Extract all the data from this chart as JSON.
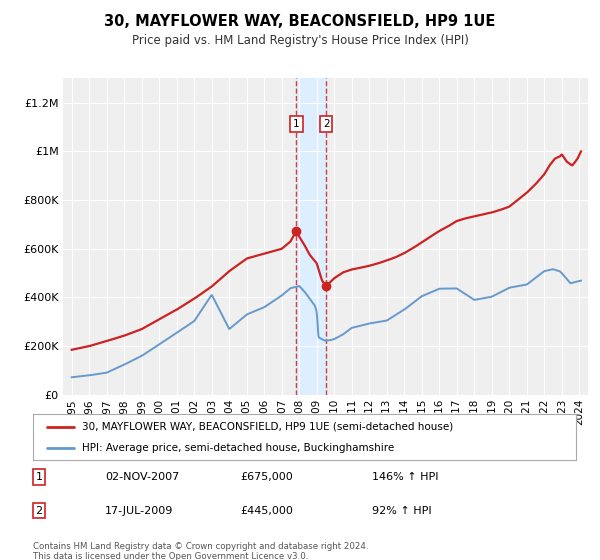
{
  "title": "30, MAYFLOWER WAY, BEACONSFIELD, HP9 1UE",
  "subtitle": "Price paid vs. HM Land Registry's House Price Index (HPI)",
  "legend_line1": "30, MAYFLOWER WAY, BEACONSFIELD, HP9 1UE (semi-detached house)",
  "legend_line2": "HPI: Average price, semi-detached house, Buckinghamshire",
  "footer": "Contains HM Land Registry data © Crown copyright and database right 2024.\nThis data is licensed under the Open Government Licence v3.0.",
  "transaction1_date": "02-NOV-2007",
  "transaction1_price": "£675,000",
  "transaction1_hpi": "146% ↑ HPI",
  "transaction1_x": 2007.84,
  "transaction1_y": 675000,
  "transaction2_date": "17-JUL-2009",
  "transaction2_price": "£445,000",
  "transaction2_hpi": "92% ↑ HPI",
  "transaction2_x": 2009.54,
  "transaction2_y": 445000,
  "hpi_color": "#6699cc",
  "price_color": "#cc2222",
  "vspan_color": "#ddeeff",
  "ylim": [
    0,
    1300000
  ],
  "xlim_start": 1994.5,
  "xlim_end": 2024.5,
  "yticks": [
    0,
    200000,
    400000,
    600000,
    800000,
    1000000,
    1200000
  ],
  "ytick_labels": [
    "£0",
    "£200K",
    "£400K",
    "£600K",
    "£800K",
    "£1M",
    "£1.2M"
  ],
  "xticks": [
    1995,
    1996,
    1997,
    1998,
    1999,
    2000,
    2001,
    2002,
    2003,
    2004,
    2005,
    2006,
    2007,
    2008,
    2009,
    2010,
    2011,
    2012,
    2013,
    2014,
    2015,
    2016,
    2017,
    2018,
    2019,
    2020,
    2021,
    2022,
    2023,
    2024
  ]
}
